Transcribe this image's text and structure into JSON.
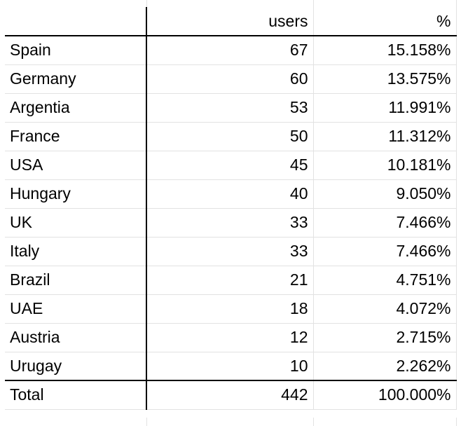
{
  "header": {
    "col_label": "",
    "col_users": "users",
    "col_pct": "%"
  },
  "rows": [
    {
      "country": "Spain",
      "users": "67",
      "pct": "15.158%"
    },
    {
      "country": "Germany",
      "users": "60",
      "pct": "13.575%"
    },
    {
      "country": "Argentia",
      "users": "53",
      "pct": "11.991%"
    },
    {
      "country": "France",
      "users": "50",
      "pct": "11.312%"
    },
    {
      "country": "USA",
      "users": "45",
      "pct": "10.181%"
    },
    {
      "country": "Hungary",
      "users": "40",
      "pct": "9.050%"
    },
    {
      "country": "UK",
      "users": "33",
      "pct": "7.466%"
    },
    {
      "country": "Italy",
      "users": "33",
      "pct": "7.466%"
    },
    {
      "country": "Brazil",
      "users": "21",
      "pct": "4.751%"
    },
    {
      "country": "UAE",
      "users": "18",
      "pct": "4.072%"
    },
    {
      "country": "Austria",
      "users": "12",
      "pct": "2.715%"
    },
    {
      "country": "Urugay",
      "users": "10",
      "pct": "2.262%"
    }
  ],
  "total": {
    "label": "Total",
    "users": "442",
    "pct": "100.000%"
  }
}
